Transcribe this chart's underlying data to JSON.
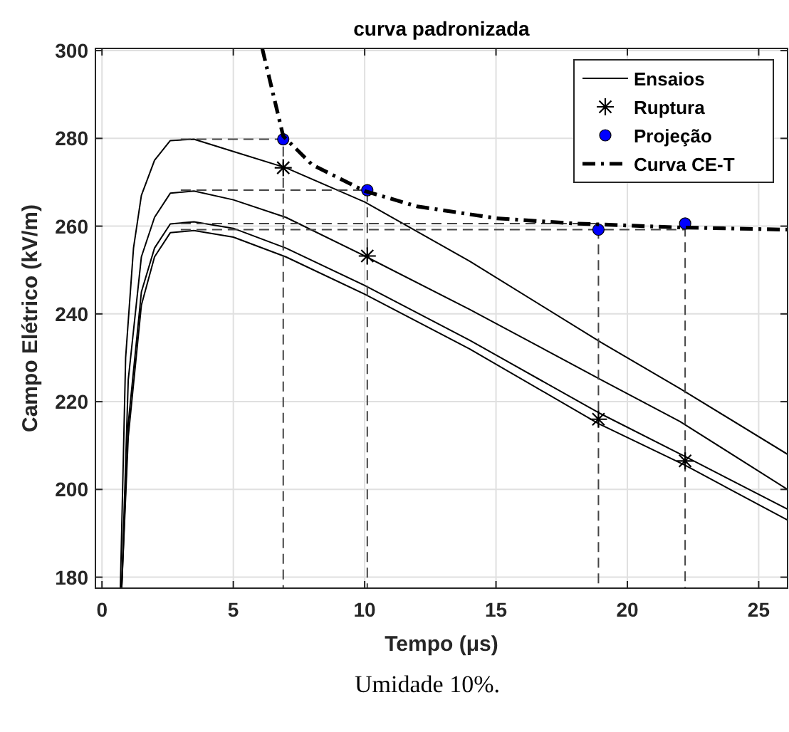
{
  "chart_data": {
    "type": "line",
    "title": "curva padronizada",
    "xlabel": "Tempo (μs)",
    "ylabel": "Campo Elétrico (kV/m)",
    "annotations": [
      "Umidade 10%."
    ],
    "xlim": [
      -0.25,
      26.1
    ],
    "ylim": [
      177.5,
      300.5
    ],
    "xticks": [
      0,
      5,
      10,
      15,
      20,
      25
    ],
    "yticks": [
      180,
      200,
      220,
      240,
      260,
      280,
      300
    ],
    "grid": true,
    "legend": "top right",
    "series": [
      {
        "name": "Ensaios",
        "line_style": "solid",
        "color": "#000000",
        "x": [
          0.7,
          0.9,
          1.2,
          1.5,
          2,
          2.6,
          3.5,
          5,
          7,
          10,
          14,
          19,
          22,
          26.1
        ],
        "values": [
          177.5,
          230,
          255,
          267,
          275,
          279.5,
          279.8,
          277,
          273.3,
          265.5,
          252,
          233.5,
          223,
          208
        ]
      },
      {
        "line_style": "solid",
        "color": "#000000",
        "x": [
          0.75,
          1,
          1.5,
          2,
          2.6,
          3.5,
          5,
          7,
          10,
          14,
          19,
          22,
          26.1
        ],
        "values": [
          177.5,
          225,
          253,
          262,
          267.5,
          268,
          266,
          262,
          253.2,
          241,
          225,
          215.5,
          200
        ]
      },
      {
        "line_style": "solid",
        "color": "#000000",
        "x": [
          0.75,
          1,
          1.5,
          2,
          2.6,
          3.5,
          5,
          7,
          10,
          14,
          18.9,
          22.2,
          26.1
        ],
        "values": [
          177.5,
          215,
          245,
          255,
          260.5,
          261,
          259.5,
          255,
          246.5,
          234,
          217.5,
          207.5,
          195.5
        ]
      },
      {
        "line_style": "solid",
        "color": "#000000",
        "x": [
          0.75,
          1,
          1.5,
          2,
          2.6,
          3.5,
          5,
          7,
          10,
          14,
          18.9,
          22.2,
          26.1
        ],
        "values": [
          177.5,
          212,
          242,
          253,
          258.5,
          259,
          257.5,
          253,
          244.5,
          232,
          215,
          205.5,
          193
        ]
      },
      {
        "line_style": "dashed",
        "color": "#444444",
        "x": [
          3,
          6.9,
          6.9
        ],
        "values": [
          279.8,
          279.8,
          177.5
        ]
      },
      {
        "line_style": "dashed",
        "color": "#444444",
        "x": [
          3,
          10.1,
          10.1
        ],
        "values": [
          268.2,
          268.2,
          177.5
        ]
      },
      {
        "line_style": "dashed",
        "color": "#444444",
        "x": [
          3,
          18.9,
          18.9
        ],
        "values": [
          260.6,
          260.6,
          177.5
        ]
      },
      {
        "line_style": "dashed",
        "color": "#444444",
        "x": [
          3,
          22.2,
          22.2
        ],
        "values": [
          259.2,
          259.2,
          177.5
        ]
      },
      {
        "name": "Ruptura",
        "type": "scatter",
        "marker": "cross",
        "color": "#000000",
        "x": [
          6.9,
          10.1,
          18.9,
          22.2
        ],
        "values": [
          273.3,
          253.2,
          216,
          206.5
        ]
      },
      {
        "name": "Projeção",
        "type": "scatter",
        "marker": "circle",
        "color": "#0000ff",
        "x": [
          6.9,
          10.1,
          18.9,
          22.2
        ],
        "values": [
          279.8,
          268.2,
          259.2,
          260.6
        ]
      },
      {
        "name": "Curva CE-T",
        "line_style": "dashdot",
        "color": "#000000",
        "x": [
          6.1,
          6.9,
          8,
          10,
          12,
          15,
          18,
          22,
          26.1
        ],
        "values": [
          300.5,
          280.5,
          274,
          268,
          264.5,
          261.8,
          260.6,
          259.7,
          259.2
        ]
      }
    ]
  }
}
